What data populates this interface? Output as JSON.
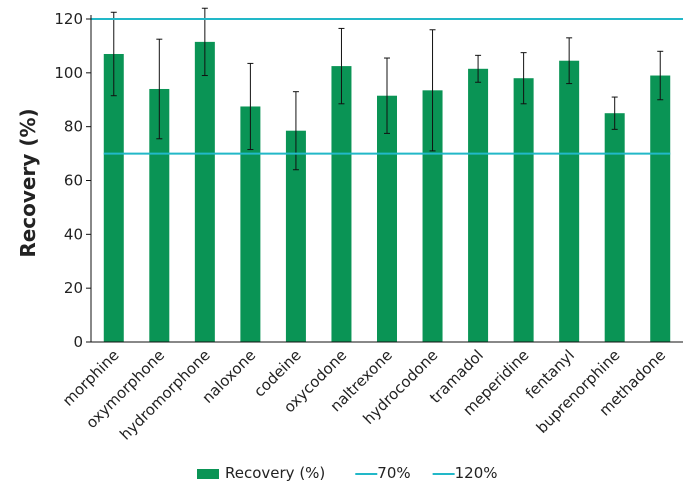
{
  "chart_data": {
    "type": "bar",
    "title": "",
    "xlabel": "",
    "ylabel": "Recovery (%)",
    "ylim": [
      0,
      120
    ],
    "yticks": [
      0,
      20,
      40,
      60,
      80,
      100,
      120
    ],
    "grid": false,
    "legend_position": "bottom",
    "categories": [
      "morphine",
      "oxymorphone",
      "hydromorphone",
      "naloxone",
      "codeine",
      "oxycodone",
      "naltrexone",
      "hydrocodone",
      "tramadol",
      "meperidine",
      "fentanyl",
      "buprenorphine",
      "methadone"
    ],
    "series": [
      {
        "name": "Recovery (%)",
        "type": "bar",
        "color": "#0a9455",
        "values": [
          107,
          94,
          111.5,
          87.5,
          78.5,
          102.5,
          91.5,
          93.5,
          101.5,
          98,
          104.5,
          85,
          99
        ],
        "error": [
          15.5,
          18.5,
          12.5,
          16,
          14.5,
          14,
          14,
          22.5,
          5,
          9.5,
          8.5,
          6,
          9
        ]
      },
      {
        "name": "70%",
        "type": "hline",
        "color": "#22b8c8",
        "value": 70
      },
      {
        "name": "120%",
        "type": "hline",
        "color": "#22b8c8",
        "value": 120
      }
    ]
  }
}
